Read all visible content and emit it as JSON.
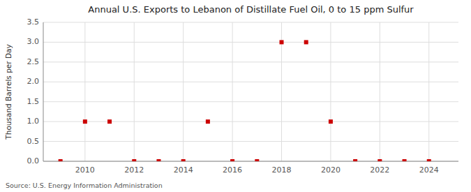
{
  "chart_data": {
    "type": "scatter",
    "title": "Annual U.S. Exports to Lebanon of Distillate Fuel Oil, 0 to 15 ppm Sulfur",
    "ylabel": "Thousand Barrels per Day",
    "source": "Source: U.S. Energy Information Administration",
    "x": [
      2009,
      2010,
      2011,
      2012,
      2013,
      2014,
      2015,
      2016,
      2017,
      2018,
      2019,
      2020,
      2021,
      2022,
      2023,
      2024
    ],
    "values": [
      0.0,
      1.0,
      1.0,
      0.0,
      0.0,
      0.0,
      1.0,
      0.0,
      0.0,
      3.0,
      3.0,
      1.0,
      0.0,
      0.0,
      0.0,
      0.0
    ],
    "color": "#cc0000",
    "marker": "square",
    "xlim": [
      2008.3,
      2025.2
    ],
    "xticks": [
      2010,
      2012,
      2014,
      2016,
      2018,
      2020,
      2022,
      2024
    ],
    "ylim": [
      0.0,
      3.5
    ],
    "yticks": [
      {
        "value": 0.0,
        "label": "0.0"
      },
      0.5,
      {
        "value": 1.0,
        "label": "1.0"
      },
      1.5,
      {
        "value": 2.0,
        "label": "2.0"
      },
      2.5,
      {
        "value": 3.0,
        "label": "3.0"
      },
      3.5
    ],
    "grid": true
  }
}
